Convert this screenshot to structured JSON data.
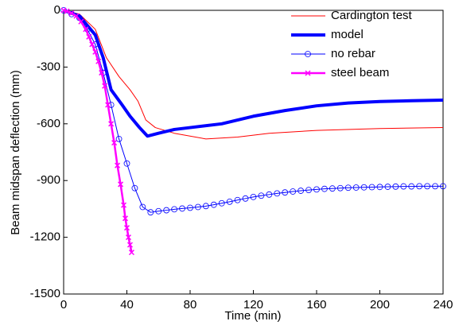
{
  "chart_data": {
    "type": "line",
    "x_label": "Time (min)",
    "y_label": "Beam midspan deflection (mm)",
    "xlim": [
      0,
      240
    ],
    "xticks": [
      0,
      40,
      80,
      120,
      160,
      200,
      240
    ],
    "ylim": [
      -1500,
      0
    ],
    "yticks": [
      -1500,
      -1200,
      -900,
      -600,
      -300,
      0
    ],
    "legend": "upper right",
    "series": [
      {
        "name": "Cardington test",
        "color": "#ff0000",
        "width": 1,
        "marker": "none",
        "x": [
          0,
          10,
          20,
          27,
          35,
          42,
          47,
          52,
          58,
          70,
          90,
          110,
          130,
          160,
          200,
          240
        ],
        "values": [
          0,
          -20,
          -100,
          -250,
          -350,
          -420,
          -480,
          -580,
          -620,
          -650,
          -680,
          -670,
          -650,
          -635,
          -625,
          -620
        ]
      },
      {
        "name": "model",
        "color": "#0000ff",
        "width": 4,
        "marker": "none",
        "x": [
          0,
          10,
          20,
          25,
          30,
          37,
          42,
          48,
          53,
          60,
          70,
          80,
          100,
          120,
          140,
          160,
          180,
          200,
          220,
          240
        ],
        "values": [
          0,
          -30,
          -130,
          -250,
          -420,
          -500,
          -560,
          -620,
          -665,
          -650,
          -630,
          -620,
          -600,
          -560,
          -530,
          -505,
          -490,
          -482,
          -478,
          -475
        ]
      },
      {
        "name": "no rebar",
        "color": "#0000ff",
        "width": 1,
        "marker": "circle",
        "x": [
          0,
          5,
          10,
          15,
          20,
          25,
          30,
          35,
          40,
          45,
          50,
          55,
          60,
          65,
          70,
          75,
          80,
          85,
          90,
          95,
          100,
          105,
          110,
          115,
          120,
          125,
          130,
          135,
          140,
          145,
          150,
          155,
          160,
          165,
          170,
          175,
          180,
          185,
          190,
          195,
          200,
          205,
          210,
          215,
          220,
          225,
          230,
          235,
          240
        ],
        "values": [
          0,
          -20,
          -40,
          -100,
          -180,
          -330,
          -500,
          -680,
          -810,
          -940,
          -1040,
          -1068,
          -1062,
          -1057,
          -1052,
          -1048,
          -1044,
          -1040,
          -1035,
          -1028,
          -1020,
          -1012,
          -1003,
          -995,
          -987,
          -980,
          -974,
          -968,
          -963,
          -958,
          -954,
          -950,
          -947,
          -944,
          -942,
          -940,
          -938,
          -937,
          -936,
          -935,
          -934,
          -933,
          -932,
          -931,
          -931,
          -930,
          -930,
          -930,
          -930
        ]
      },
      {
        "name": "steel beam",
        "color": "#ff00ff",
        "width": 2.5,
        "marker": "x",
        "x": [
          0,
          2,
          5,
          8,
          11,
          14,
          16,
          18,
          20,
          22,
          24,
          26,
          28,
          30,
          32,
          34,
          36,
          38,
          39,
          40,
          41,
          42,
          43
        ],
        "values": [
          0,
          -5,
          -15,
          -30,
          -60,
          -100,
          -140,
          -180,
          -220,
          -270,
          -330,
          -400,
          -500,
          -600,
          -700,
          -820,
          -920,
          -1030,
          -1100,
          -1150,
          -1200,
          -1240,
          -1280
        ]
      }
    ]
  }
}
